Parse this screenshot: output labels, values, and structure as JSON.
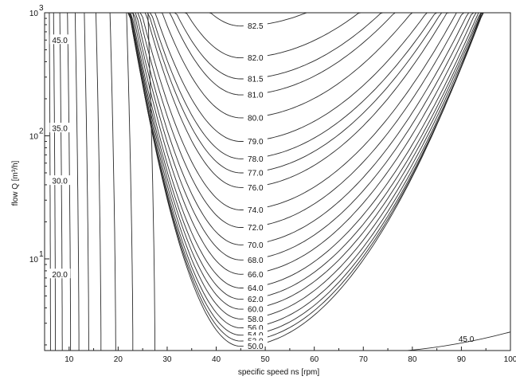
{
  "chart_data": {
    "type": "contour",
    "xlabel": "specific speed ns [rpm]",
    "ylabel": "flow Q [m³/h]",
    "xlim": [
      5,
      100
    ],
    "ylim": [
      1.8,
      1000
    ],
    "y_scale": "log",
    "x_ticks": [
      "10",
      "20",
      "30",
      "40",
      "50",
      "60",
      "70",
      "80",
      "90",
      "100"
    ],
    "x_tick_values": [
      10,
      20,
      30,
      40,
      50,
      60,
      70,
      80,
      90,
      100
    ],
    "y_ticks": [
      {
        "value": 10,
        "base": "10",
        "exp": "1"
      },
      {
        "value": 100,
        "base": "10",
        "exp": "2"
      },
      {
        "value": 1000,
        "base": "10",
        "exp": "3"
      }
    ],
    "grid": false,
    "levels": [
      {
        "label": "82.5",
        "x": 48,
        "y": 780
      },
      {
        "label": "82.0",
        "x": 48,
        "y": 430
      },
      {
        "label": "81.5",
        "x": 48,
        "y": 290
      },
      {
        "label": "81.0",
        "x": 48,
        "y": 215
      },
      {
        "label": "80.0",
        "x": 48,
        "y": 140
      },
      {
        "label": "79.0",
        "x": 48,
        "y": 90
      },
      {
        "label": "78.0",
        "x": 48,
        "y": 65
      },
      {
        "label": "77.0",
        "x": 48,
        "y": 50
      },
      {
        "label": "76.0",
        "x": 48,
        "y": 38
      },
      {
        "label": "74.0",
        "x": 48,
        "y": 25
      },
      {
        "label": "72.0",
        "x": 48,
        "y": 18
      },
      {
        "label": "70.0",
        "x": 48,
        "y": 13
      },
      {
        "label": "68.0",
        "x": 48,
        "y": 9.8
      },
      {
        "label": "66.0",
        "x": 48,
        "y": 7.5
      },
      {
        "label": "64.0",
        "x": 48,
        "y": 5.8
      },
      {
        "label": "62.0",
        "x": 48,
        "y": 4.7
      },
      {
        "label": "60.0",
        "x": 48,
        "y": 3.9
      },
      {
        "label": "58.0",
        "x": 48,
        "y": 3.25
      },
      {
        "label": "56.0",
        "x": 48,
        "y": 2.75
      },
      {
        "label": "54.0",
        "x": 48,
        "y": 2.4
      },
      {
        "label": "52.0",
        "x": 48,
        "y": 2.15
      },
      {
        "label": "50.0",
        "x": 48,
        "y": 1.95
      }
    ],
    "left_levels": [
      {
        "label": "45.0",
        "x": 7.5,
        "y": 600
      },
      {
        "label": "35.0",
        "x": 7.5,
        "y": 115
      },
      {
        "label": "30.0",
        "x": 7.5,
        "y": 43
      },
      {
        "label": "20.0",
        "x": 7.5,
        "y": 7.5
      }
    ],
    "corner_label": {
      "label": "45.0",
      "x": 91,
      "y": 2.0
    }
  }
}
